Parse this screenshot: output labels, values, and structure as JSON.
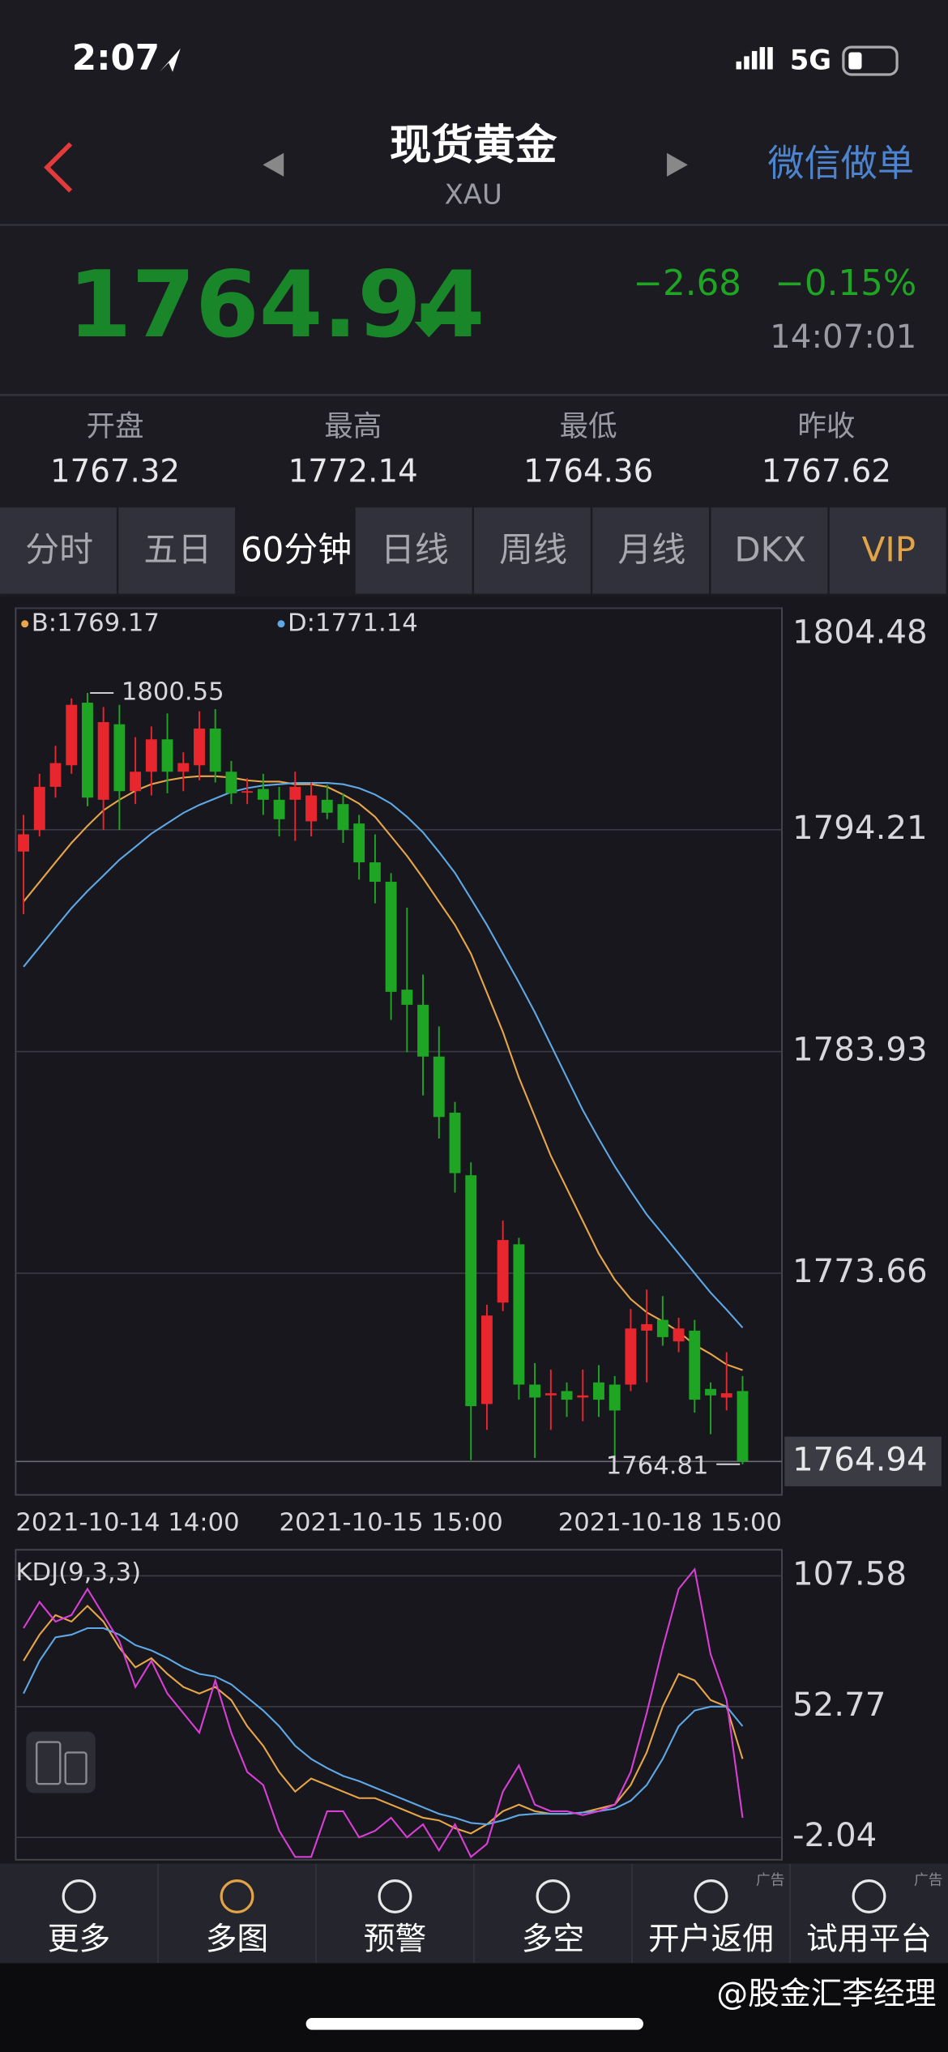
{
  "status_bar": {
    "time": "2:07",
    "network": "5G"
  },
  "header": {
    "title": "现货黄金",
    "subtitle": "XAU",
    "action": "微信做单"
  },
  "quote": {
    "price": "1764.94",
    "change": "−2.68",
    "change_percent": "−0.15%",
    "time": "14:07:01"
  },
  "stats": [
    {
      "label": "开盘",
      "value": "1767.32"
    },
    {
      "label": "最高",
      "value": "1772.14"
    },
    {
      "label": "最低",
      "value": "1764.36"
    },
    {
      "label": "昨收",
      "value": "1767.62"
    }
  ],
  "tabs": {
    "items": [
      "分时",
      "五日",
      "60分钟",
      "日线",
      "周线",
      "月线",
      "DKX",
      "VIP"
    ],
    "active": 2
  },
  "chart_data": [
    {
      "type": "candlestick",
      "categories": [
        "2021-10-14 14:00",
        null,
        null,
        null,
        null,
        null,
        null,
        null,
        null,
        null,
        null,
        null,
        null,
        null,
        null,
        null,
        null,
        null,
        null,
        null,
        null,
        null,
        null,
        "2021-10-15 15:00",
        null,
        null,
        null,
        null,
        null,
        null,
        null,
        null,
        null,
        null,
        null,
        null,
        null,
        null,
        null,
        null,
        null,
        null,
        null,
        null,
        null,
        "2021-10-18 15:00"
      ],
      "open": [
        1793.2,
        1794.2,
        1796.2,
        1797.2,
        1800.1,
        1795.6,
        1799.1,
        1796.0,
        1796.9,
        1798.4,
        1796.9,
        1797.2,
        1798.9,
        1796.9,
        1796.0,
        1796.1,
        1795.6,
        1795.6,
        1794.6,
        1795.6,
        1795.4,
        1794.5,
        1792.7,
        1791.8,
        1786.8,
        1786.1,
        1783.7,
        1781.1,
        1778.2,
        1767.6,
        1772.3,
        1775.0,
        1768.5,
        1768.0,
        1768.2,
        1767.9,
        1768.6,
        1768.5,
        1768.5,
        1771.0,
        1771.5,
        1770.5,
        1771.0,
        1768.3,
        1767.9,
        1768.2
      ],
      "high": [
        1794.9,
        1796.8,
        1798.1,
        1800.3,
        1800.55,
        1799.9,
        1800.0,
        1798.5,
        1799.0,
        1799.6,
        1797.8,
        1799.7,
        1799.8,
        1797.4,
        1796.6,
        1796.8,
        1796.2,
        1796.9,
        1796.4,
        1796.3,
        1795.9,
        1794.9,
        1794.0,
        1792.2,
        1790.6,
        1787.5,
        1785.1,
        1781.6,
        1778.8,
        1772.2,
        1776.1,
        1775.3,
        1769.5,
        1769.2,
        1768.6,
        1769.2,
        1769.4,
        1768.9,
        1772.0,
        1772.9,
        1772.6,
        1771.6,
        1771.5,
        1768.6,
        1770.0,
        1768.9
      ],
      "low": [
        1790.3,
        1793.9,
        1795.7,
        1796.8,
        1795.3,
        1794.2,
        1794.2,
        1795.4,
        1795.8,
        1795.9,
        1796.0,
        1796.5,
        1796.4,
        1795.4,
        1795.4,
        1794.9,
        1793.9,
        1793.7,
        1793.9,
        1794.7,
        1793.6,
        1791.9,
        1790.8,
        1785.4,
        1783.9,
        1781.9,
        1779.9,
        1777.4,
        1765.0,
        1766.4,
        1771.9,
        1767.8,
        1765.1,
        1766.4,
        1767.0,
        1766.8,
        1767.0,
        1764.9,
        1768.2,
        1768.6,
        1770.3,
        1770.0,
        1767.2,
        1766.2,
        1767.3,
        1764.81
      ],
      "close": [
        1794.0,
        1796.2,
        1797.3,
        1800.0,
        1795.7,
        1799.2,
        1796.0,
        1796.9,
        1798.4,
        1796.9,
        1797.3,
        1798.9,
        1796.9,
        1795.9,
        1796.0,
        1795.6,
        1794.7,
        1796.2,
        1795.8,
        1795.0,
        1794.2,
        1792.7,
        1791.8,
        1786.7,
        1786.1,
        1783.7,
        1780.9,
        1778.3,
        1767.5,
        1771.7,
        1775.2,
        1768.5,
        1767.9,
        1768.1,
        1767.8,
        1768.0,
        1767.8,
        1767.3,
        1771.1,
        1771.3,
        1770.7,
        1771.1,
        1767.8,
        1768.0,
        1768.1,
        1764.94
      ],
      "up_color": "#e8262d",
      "down_color": "#1fa524",
      "series": [
        {
          "name": "B:1769.17",
          "color": "#e8a64a",
          "values": [
            1790.88,
            1791.79,
            1792.7,
            1793.6,
            1794.39,
            1795.11,
            1795.6,
            1796.02,
            1796.32,
            1796.5,
            1796.63,
            1796.69,
            1796.69,
            1796.63,
            1796.5,
            1796.44,
            1796.44,
            1796.32,
            1796.32,
            1796.2,
            1795.84,
            1795.42,
            1794.81,
            1793.91,
            1793.0,
            1791.97,
            1790.88,
            1789.8,
            1788.47,
            1786.66,
            1784.84,
            1782.73,
            1780.92,
            1779.1,
            1777.59,
            1776.08,
            1774.57,
            1773.36,
            1772.46,
            1771.85,
            1771.43,
            1770.95,
            1770.34,
            1769.92,
            1769.43,
            1769.17
          ]
        },
        {
          "name": "D:1771.14",
          "color": "#5fa8e6",
          "values": [
            1787.86,
            1788.77,
            1789.68,
            1790.58,
            1791.37,
            1792.09,
            1792.82,
            1793.42,
            1794.03,
            1794.51,
            1794.99,
            1795.36,
            1795.66,
            1795.96,
            1796.14,
            1796.26,
            1796.32,
            1796.38,
            1796.38,
            1796.38,
            1796.32,
            1796.14,
            1795.84,
            1795.42,
            1794.81,
            1794.09,
            1793.18,
            1792.21,
            1791.01,
            1789.8,
            1788.47,
            1787.14,
            1785.75,
            1784.24,
            1782.73,
            1781.22,
            1779.89,
            1778.62,
            1777.47,
            1776.38,
            1775.48,
            1774.57,
            1773.66,
            1772.76,
            1771.97,
            1771.14
          ]
        }
      ],
      "ylim": [
        1763.39,
        1804.48
      ],
      "yticks": [
        1804.48,
        1794.21,
        1783.93,
        1773.66
      ],
      "grid": true,
      "last_price": 1764.94,
      "high_label": 1800.55,
      "low_label": 1764.81
    },
    {
      "type": "line",
      "title": "KDJ(9,3,3)",
      "series": [
        {
          "color": "#e8a64a",
          "values": [
            71.96,
            82.92,
            91.14,
            88.4,
            94.98,
            88.4,
            77.44,
            69.22,
            73.06,
            66.48,
            61.0,
            58.26,
            61.0,
            55.52,
            44.56,
            36.34,
            25.38,
            17.16,
            22.64,
            19.9,
            17.16,
            14.42,
            14.42,
            11.68,
            8.94,
            6.2,
            5.1,
            1.82,
            -0.38,
            3.46,
            8.94,
            11.68,
            8.94,
            7.84,
            7.84,
            8.39,
            10.04,
            11.68,
            19.9,
            33.6,
            52.78,
            66.48,
            63.74,
            55.52,
            52.78,
            30.86
          ]
        },
        {
          "color": "#5fa8e6",
          "values": [
            58.26,
            71.96,
            81.82,
            82.92,
            85.66,
            85.66,
            82.92,
            78.54,
            76.34,
            73.06,
            69.22,
            66.48,
            65.38,
            62.1,
            56.62,
            51.14,
            44.56,
            36.34,
            30.86,
            27.02,
            23.73,
            21.54,
            18.8,
            16.06,
            13.32,
            10.58,
            7.84,
            6.2,
            4.01,
            3.46,
            5.1,
            7.3,
            7.84,
            7.84,
            7.84,
            8.39,
            8.94,
            10.04,
            13.32,
            19.9,
            30.86,
            44.56,
            51.14,
            52.78,
            52.78,
            44.56
          ]
        },
        {
          "color": "#d93fd6",
          "values": [
            85.66,
            96.62,
            88.4,
            91.14,
            102.1,
            91.14,
            80.18,
            61.0,
            71.96,
            58.26,
            50.04,
            41.82,
            63.74,
            41.82,
            25.38,
            19.9,
            0.72,
            -10.24,
            -10.24,
            8.94,
            8.94,
            -2.02,
            0.72,
            6.2,
            -2.02,
            3.46,
            -7.5,
            3.46,
            -10.24,
            -4.76,
            17.16,
            28.12,
            11.68,
            8.94,
            8.94,
            7.3,
            8.94,
            11.68,
            25.38,
            50.04,
            77.44,
            102.1,
            110.32,
            74.7,
            55.52,
            6.2
          ]
        }
      ],
      "ylim": [
        -11.4,
        118.5
      ],
      "yticks": [
        107.58,
        52.77,
        -2.04
      ],
      "grid": true
    }
  ],
  "bottom_nav": {
    "items": [
      {
        "label": "更多"
      },
      {
        "label": "多图"
      },
      {
        "label": "预警"
      },
      {
        "label": "多空"
      },
      {
        "label": "开户返佣",
        "badge": "广告"
      },
      {
        "label": "试用平台",
        "badge": "广告"
      }
    ]
  },
  "watermark": "@股金汇李经理"
}
